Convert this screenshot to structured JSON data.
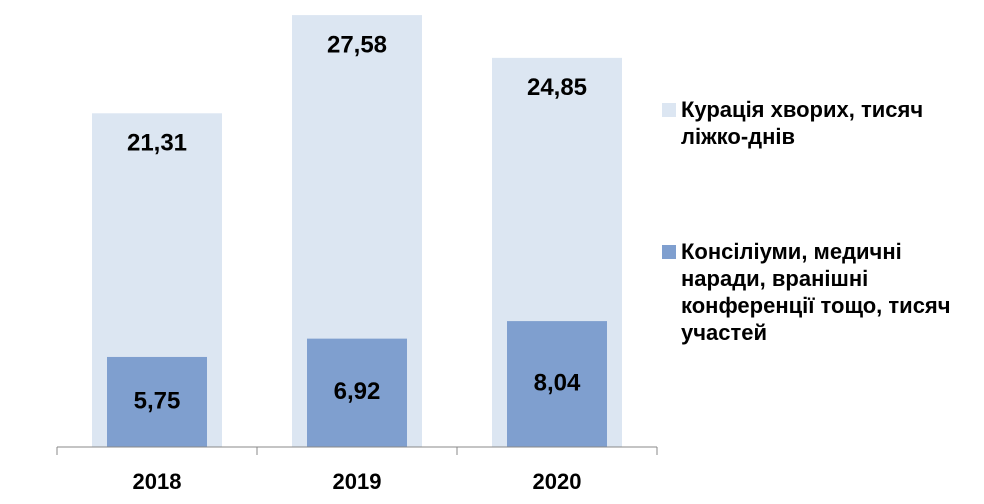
{
  "chart_data": {
    "type": "overlapped-bar",
    "categories": [
      "2018",
      "2019",
      "2020"
    ],
    "series": [
      {
        "name": "Курація хворих, тисяч ліжко-днів",
        "color": "#dce6f2",
        "values": [
          21.31,
          27.58,
          24.85
        ],
        "value_labels": [
          "21,31",
          "27,58",
          "24,85"
        ]
      },
      {
        "name": "Консіліуми, медичні наради, вранішні конференції тощо, тисяч участей",
        "color": "#7f9fcf",
        "values": [
          5.75,
          6.92,
          8.04
        ],
        "value_labels": [
          "5,75",
          "6,92",
          "8,04"
        ]
      }
    ],
    "legend": "right"
  }
}
